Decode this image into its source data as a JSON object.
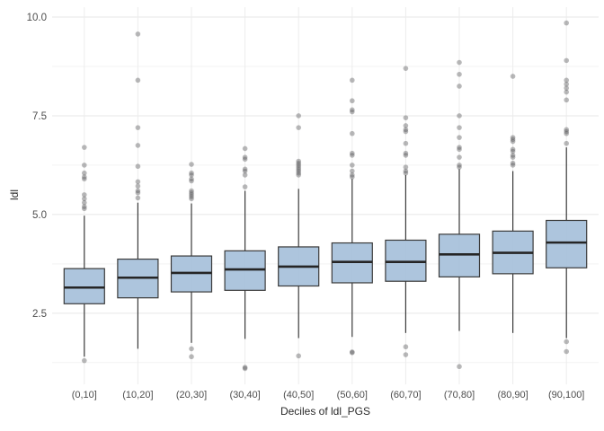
{
  "chart_data": {
    "type": "boxplot",
    "title": "",
    "xlabel": "Deciles of ldl_PGS",
    "ylabel": "ldl",
    "legend": "none",
    "grid": "horizontal major+minor, vertical per category",
    "ylim": [
      0.7,
      10.25
    ],
    "y_major_ticks": [
      2.5,
      5.0,
      7.5,
      10.0
    ],
    "y_tick_labels": [
      "2.5",
      "5.0",
      "7.5",
      "10.0"
    ],
    "y_minor_ticks": [
      1.25,
      3.75,
      6.25,
      8.75
    ],
    "categories": [
      "(0,10]",
      "(10,20]",
      "(20,30]",
      "(30,40]",
      "(40,50]",
      "(50,60]",
      "(60,70]",
      "(70,80]",
      "(80,90]",
      "(90,100]"
    ],
    "boxes": [
      {
        "category": "(0,10]",
        "whisker_low": 1.4,
        "q1": 2.74,
        "median": 3.15,
        "q3": 3.63,
        "whisker_high": 4.97,
        "outliers": [
          1.3,
          5.15,
          5.2,
          5.3,
          5.4,
          5.5,
          5.9,
          5.95,
          6.05,
          6.25,
          6.7
        ]
      },
      {
        "category": "(10,20]",
        "whisker_low": 1.6,
        "q1": 2.89,
        "median": 3.4,
        "q3": 3.87,
        "whisker_high": 5.3,
        "outliers": [
          5.42,
          5.55,
          5.6,
          5.72,
          5.83,
          6.22,
          6.75,
          7.2,
          8.4,
          9.57
        ]
      },
      {
        "category": "(20,30]",
        "whisker_low": 1.75,
        "q1": 3.04,
        "median": 3.52,
        "q3": 3.95,
        "whisker_high": 5.28,
        "outliers": [
          1.4,
          1.6,
          5.4,
          5.45,
          5.5,
          5.55,
          5.6,
          5.85,
          5.9,
          6.0,
          6.05,
          6.27
        ]
      },
      {
        "category": "(30,40]",
        "whisker_low": 1.85,
        "q1": 3.08,
        "median": 3.61,
        "q3": 4.08,
        "whisker_high": 5.6,
        "outliers": [
          1.1,
          1.13,
          5.7,
          6.0,
          6.1,
          6.15,
          6.4,
          6.45,
          6.67
        ]
      },
      {
        "category": "(40,50]",
        "whisker_low": 1.87,
        "q1": 3.19,
        "median": 3.68,
        "q3": 4.18,
        "whisker_high": 5.65,
        "outliers": [
          1.42,
          6.0,
          6.05,
          6.1,
          6.15,
          6.2,
          6.25,
          6.3,
          6.35,
          7.2,
          7.5
        ]
      },
      {
        "category": "(50,60]",
        "whisker_low": 1.9,
        "q1": 3.27,
        "median": 3.8,
        "q3": 4.28,
        "whisker_high": 5.9,
        "outliers": [
          1.5,
          1.52,
          5.95,
          6.0,
          6.1,
          6.25,
          6.5,
          6.55,
          7.05,
          7.6,
          7.65,
          7.88,
          8.4
        ]
      },
      {
        "category": "(60,70]",
        "whisker_low": 2.0,
        "q1": 3.31,
        "median": 3.8,
        "q3": 4.35,
        "whisker_high": 6.0,
        "outliers": [
          1.45,
          1.65,
          6.05,
          6.1,
          6.2,
          6.5,
          6.55,
          6.8,
          7.1,
          7.15,
          7.25,
          7.45,
          8.7
        ]
      },
      {
        "category": "(70,80]",
        "whisker_low": 2.05,
        "q1": 3.42,
        "median": 3.99,
        "q3": 4.5,
        "whisker_high": 6.15,
        "outliers": [
          1.15,
          6.2,
          6.25,
          6.45,
          6.65,
          6.7,
          6.95,
          7.2,
          7.5,
          8.25,
          8.55,
          8.85
        ]
      },
      {
        "category": "(80,90]",
        "whisker_low": 2.0,
        "q1": 3.5,
        "median": 4.03,
        "q3": 4.58,
        "whisker_high": 6.1,
        "outliers": [
          6.25,
          6.3,
          6.45,
          6.5,
          6.6,
          6.65,
          6.85,
          6.9,
          6.95,
          8.5
        ]
      },
      {
        "category": "(90,100]",
        "whisker_low": 1.87,
        "q1": 3.65,
        "median": 4.29,
        "q3": 4.85,
        "whisker_high": 6.7,
        "outliers": [
          1.53,
          1.78,
          6.8,
          7.05,
          7.1,
          7.15,
          7.9,
          8.1,
          8.2,
          8.3,
          8.4,
          8.9,
          9.85
        ]
      }
    ],
    "colors": {
      "box_fill": "#A9C2DB",
      "box_stroke": "#3A3A3A",
      "median_stroke": "#252525",
      "whisker_stroke": "#3A3A3A",
      "outlier_fill": "#58585A",
      "grid_major": "#E7E7E7",
      "grid_minor": "#F3F3F3",
      "grid_vertical": "#ECECEC",
      "tick_text": "#4D4D4D",
      "title_text": "#2A2A2A",
      "background": "#FFFFFF"
    }
  }
}
